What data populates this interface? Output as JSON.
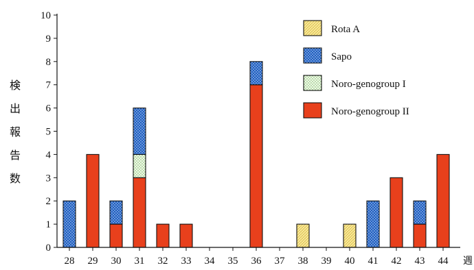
{
  "chart_data": {
    "type": "bar",
    "stacked": true,
    "categories": [
      "28",
      "29",
      "30",
      "31",
      "32",
      "33",
      "34",
      "35",
      "36",
      "37",
      "38",
      "39",
      "40",
      "41",
      "42",
      "43",
      "44"
    ],
    "series": [
      {
        "name": "Noro-genogroup II",
        "color": "#e8401c",
        "pattern": "solid",
        "values": [
          0,
          4,
          1,
          3,
          1,
          1,
          0,
          0,
          7,
          0,
          0,
          0,
          0,
          0,
          3,
          1,
          4
        ]
      },
      {
        "name": "Noro-genogroup I",
        "color": "#e6f5dc",
        "pattern": "green-dots",
        "values": [
          0,
          0,
          0,
          1,
          0,
          0,
          0,
          0,
          0,
          0,
          0,
          0,
          0,
          0,
          0,
          0,
          0
        ]
      },
      {
        "name": "Sapo",
        "color": "#2a6fcf",
        "pattern": "blue-dots",
        "values": [
          2,
          0,
          1,
          2,
          0,
          0,
          0,
          0,
          1,
          0,
          0,
          0,
          0,
          2,
          0,
          1,
          0
        ]
      },
      {
        "name": "Rota A",
        "color": "#f7e98a",
        "pattern": "yellow-hatch",
        "values": [
          0,
          0,
          0,
          0,
          0,
          0,
          0,
          0,
          0,
          0,
          1,
          0,
          1,
          0,
          0,
          0,
          0
        ]
      }
    ],
    "legend_order": [
      "Rota A",
      "Sapo",
      "Noro-genogroup I",
      "Noro-genogroup II"
    ],
    "ylabel": "検出報告数",
    "xlabel": "週",
    "ylim": [
      0,
      10
    ],
    "yticks": [
      "0",
      "1",
      "2",
      "3",
      "4",
      "5",
      "6",
      "7",
      "8",
      "9",
      "10"
    ],
    "grid": false,
    "legend_position": "top-right"
  }
}
